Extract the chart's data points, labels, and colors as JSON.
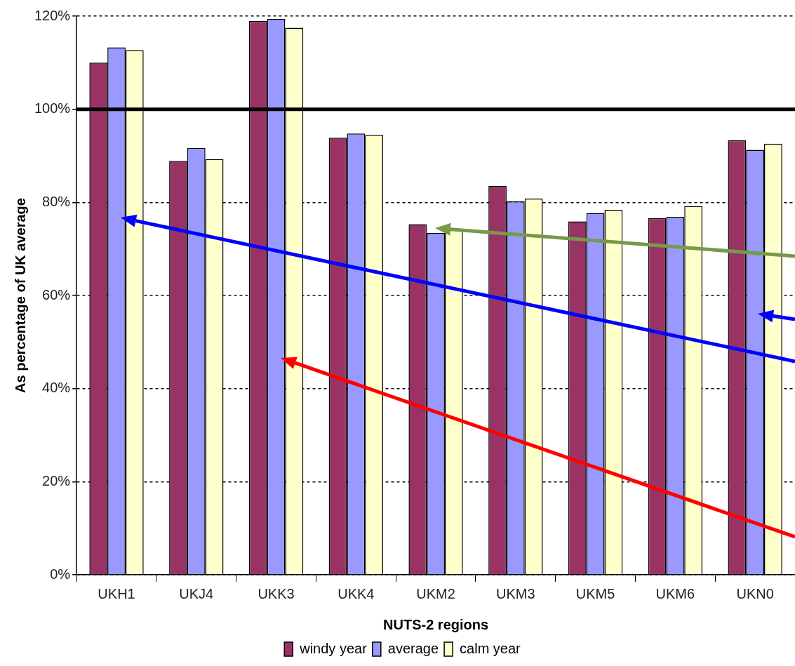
{
  "chart_data": {
    "type": "bar",
    "xlabel": "NUTS-2 regions",
    "ylabel": "As percentage of UK average",
    "categories": [
      "UKH1",
      "UKJ4",
      "UKK3",
      "UKK4",
      "UKM2",
      "UKM3",
      "UKM5",
      "UKM6",
      "UKN0"
    ],
    "series": [
      {
        "name": "windy year",
        "color": "#993366",
        "values": [
          110,
          88.9,
          119,
          93.9,
          75.3,
          83.5,
          75.9,
          76.6,
          93.3
        ]
      },
      {
        "name": "average",
        "color": "#9999ff",
        "values": [
          113.3,
          91.7,
          119.4,
          94.8,
          73.4,
          80.2,
          77.7,
          76.9,
          91.3
        ]
      },
      {
        "name": "calm year",
        "color": "#ffffcc",
        "values": [
          112.7,
          89.3,
          117.5,
          94.5,
          74.1,
          80.8,
          78.4,
          79.2,
          92.6
        ]
      }
    ],
    "ylim": [
      0,
      120
    ],
    "yticks": [
      {
        "value": 0,
        "label": "0%"
      },
      {
        "value": 20,
        "label": "20%"
      },
      {
        "value": 40,
        "label": "40%"
      },
      {
        "value": 60,
        "label": "60%"
      },
      {
        "value": 80,
        "label": "80%"
      },
      {
        "value": 100,
        "label": "100%"
      },
      {
        "value": 120,
        "label": "120%"
      }
    ],
    "ref_lines": [
      {
        "axis": "y",
        "value": 100,
        "color": "#000000"
      }
    ],
    "grid": "y",
    "legend": "bottom"
  }
}
